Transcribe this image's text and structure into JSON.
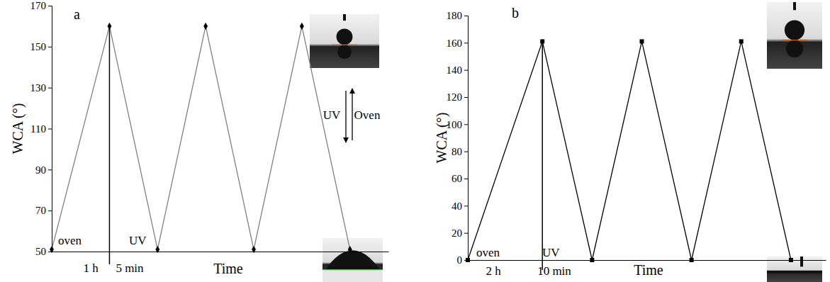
{
  "chart_data": [
    {
      "type": "line",
      "title": "a",
      "x_label": "Time",
      "y_label": "WCA (°)",
      "x": [
        0,
        1.2,
        2.2,
        3.2,
        4.2,
        5.2,
        6.2
      ],
      "values": [
        51,
        160,
        51,
        160,
        51,
        160,
        51
      ],
      "color": "#808080",
      "marker": "diamond",
      "xlim": [
        0,
        7
      ],
      "ylim": [
        50,
        170
      ],
      "yticks": [
        50,
        70,
        90,
        110,
        130,
        150,
        170
      ],
      "tick_labels": "y",
      "grid": false,
      "annotations": [
        "oven",
        "UV",
        "1 h",
        "5 min",
        "UV",
        "Oven"
      ]
    },
    {
      "type": "line",
      "title": "b",
      "x_label": "Time",
      "y_label": "WCA (°)",
      "x": [
        0,
        1.5,
        2.5,
        3.5,
        4.5,
        5.5,
        6.5
      ],
      "values": [
        0,
        161,
        0,
        161,
        0,
        161,
        0
      ],
      "color": "#000000",
      "marker": "square",
      "xlim": [
        0,
        7.2
      ],
      "ylim": [
        0,
        180
      ],
      "yticks": [
        0,
        20,
        40,
        60,
        80,
        100,
        120,
        140,
        160,
        180
      ],
      "tick_labels": "y",
      "grid": false,
      "annotations": [
        "oven",
        "UV",
        "2 h",
        "10 min"
      ]
    }
  ]
}
